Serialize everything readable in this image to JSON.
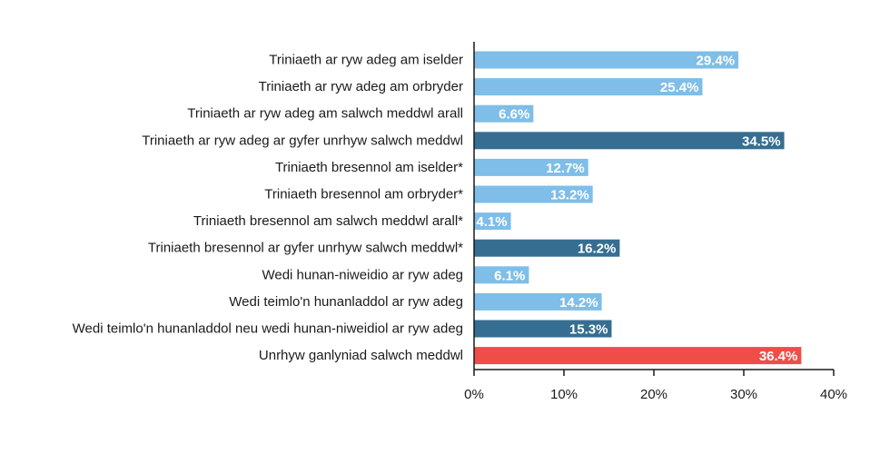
{
  "chart_data": {
    "type": "bar",
    "orientation": "horizontal",
    "categories": [
      "Triniaeth ar ryw adeg am iselder",
      "Triniaeth ar ryw adeg am orbryder",
      "Triniaeth ar ryw adeg am salwch meddwl arall",
      "Triniaeth ar ryw adeg ar gyfer unrhyw salwch meddwl",
      "Triniaeth bresennol am iselder*",
      "Triniaeth bresennol am orbryder*",
      "Triniaeth bresennol am salwch meddwl arall*",
      "Triniaeth bresennol ar gyfer unrhyw salwch meddwl*",
      "Wedi hunan-niweidio ar ryw adeg",
      "Wedi teimlo'n hunanladdol ar ryw adeg",
      "Wedi teimlo'n hunanladdol neu wedi hunan-niweidiol ar ryw adeg",
      "Unrhyw ganlyniad salwch meddwl"
    ],
    "values": [
      29.4,
      25.4,
      6.6,
      34.5,
      12.7,
      13.2,
      4.1,
      16.2,
      6.1,
      14.2,
      15.3,
      36.4
    ],
    "value_labels": [
      "29.4%",
      "25.4%",
      "6.6%",
      "34.5%",
      "12.7%",
      "13.2%",
      "4.1%",
      "16.2%",
      "6.1%",
      "14.2%",
      "15.3%",
      "36.4%"
    ],
    "bar_colors": [
      "#7fbee8",
      "#7fbee8",
      "#7fbee8",
      "#356e90",
      "#7fbee8",
      "#7fbee8",
      "#7fbee8",
      "#356e90",
      "#7fbee8",
      "#7fbee8",
      "#356e90",
      "#f04d48"
    ],
    "xlim": [
      0,
      40
    ],
    "xticks": [
      0,
      10,
      20,
      30,
      40
    ],
    "xtick_labels": [
      "0%",
      "10%",
      "20%",
      "30%",
      "40%"
    ],
    "title": "",
    "xlabel": "",
    "ylabel": "",
    "grid": false,
    "legend": "none"
  }
}
